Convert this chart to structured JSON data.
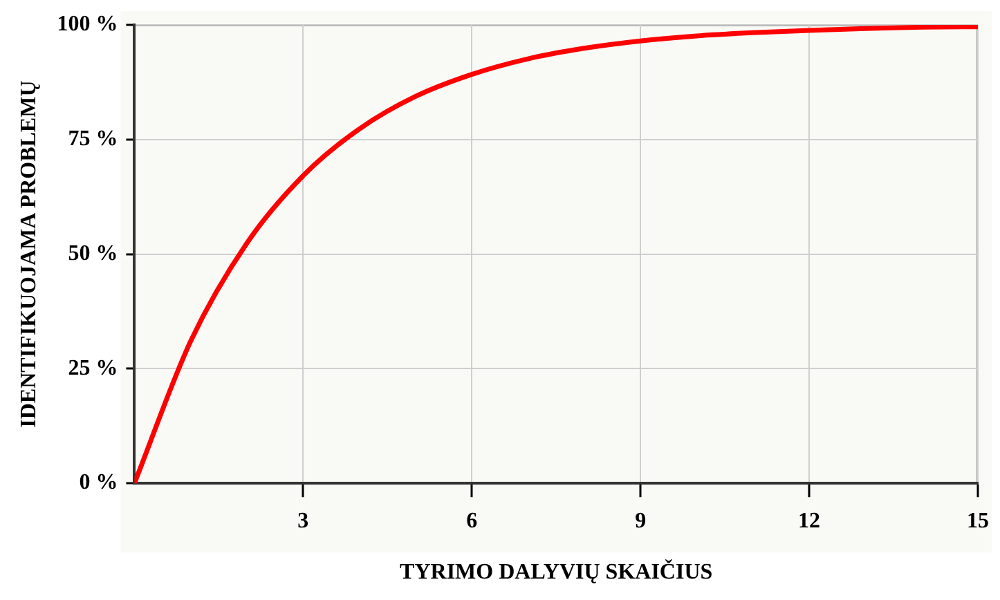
{
  "chart_data": {
    "type": "line",
    "xlabel": "TYRIMO DALYVIŲ SKAIČIUS",
    "ylabel": "IDENTIFIKUOJAMA PROBLEMŲ",
    "x": [
      0,
      1,
      2,
      3,
      4,
      5,
      6,
      7,
      8,
      9,
      10,
      11,
      12,
      13,
      14,
      15
    ],
    "series": [
      {
        "color": "#ff0000",
        "values": [
          0,
          31,
          52.4,
          67.1,
          77.3,
          84.4,
          89.2,
          92.6,
          94.9,
          96.5,
          97.6,
          98.3,
          98.8,
          99.2,
          99.5,
          99.6
        ]
      }
    ],
    "xlim": [
      0,
      15
    ],
    "xticks": [
      3,
      6,
      9,
      12,
      15
    ],
    "ylim": [
      0,
      100
    ],
    "yticks": [
      {
        "value": 0,
        "label": "0 %"
      },
      {
        "value": 25,
        "label": "25 %"
      },
      {
        "value": 50,
        "label": "50 %"
      },
      {
        "value": 75,
        "label": "75 %"
      },
      {
        "value": 100,
        "label": "100 %"
      }
    ],
    "grid": true,
    "legend": false,
    "marker": "none",
    "line_style": "solid"
  }
}
